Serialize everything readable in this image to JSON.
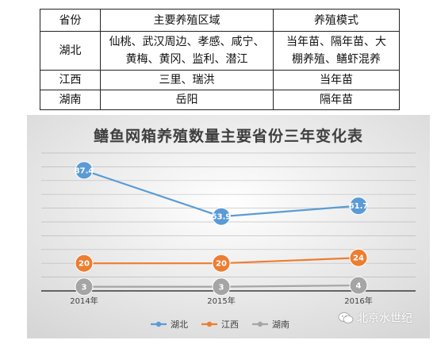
{
  "table": {
    "headers": [
      "省份",
      "主要养殖区域",
      "养殖模式"
    ],
    "rows": [
      [
        "湖北",
        "仙桃、武汉周边、孝感、咸宁、\n黄梅、黄冈、监利、潜江",
        "当年苗、隔年苗、大\n棚养殖、鳝虾混养"
      ],
      [
        "江西",
        "三里、瑞洪",
        "当年苗"
      ],
      [
        "湖南",
        "岳阳",
        "隔年苗"
      ]
    ]
  },
  "watermark": {
    "text": "北京水世纪",
    "icon": "wechat-icon"
  },
  "chart_data": {
    "type": "line",
    "title": "鳝鱼网箱养殖数量主要省份三年变化表",
    "categories": [
      "2014年",
      "2015年",
      "2016年"
    ],
    "series": [
      {
        "name": "湖北",
        "values": [
          87.4,
          53.9,
          61.7
        ],
        "color": "#5b9bd5"
      },
      {
        "name": "江西",
        "values": [
          20,
          20,
          24
        ],
        "color": "#ed7d31"
      },
      {
        "name": "湖南",
        "values": [
          3,
          3,
          4
        ],
        "color": "#a5a5a5"
      }
    ],
    "ylim": [
      0,
      100
    ],
    "grid": true,
    "legend": "bottom",
    "data_labels": true,
    "xlabel": "",
    "ylabel": ""
  }
}
